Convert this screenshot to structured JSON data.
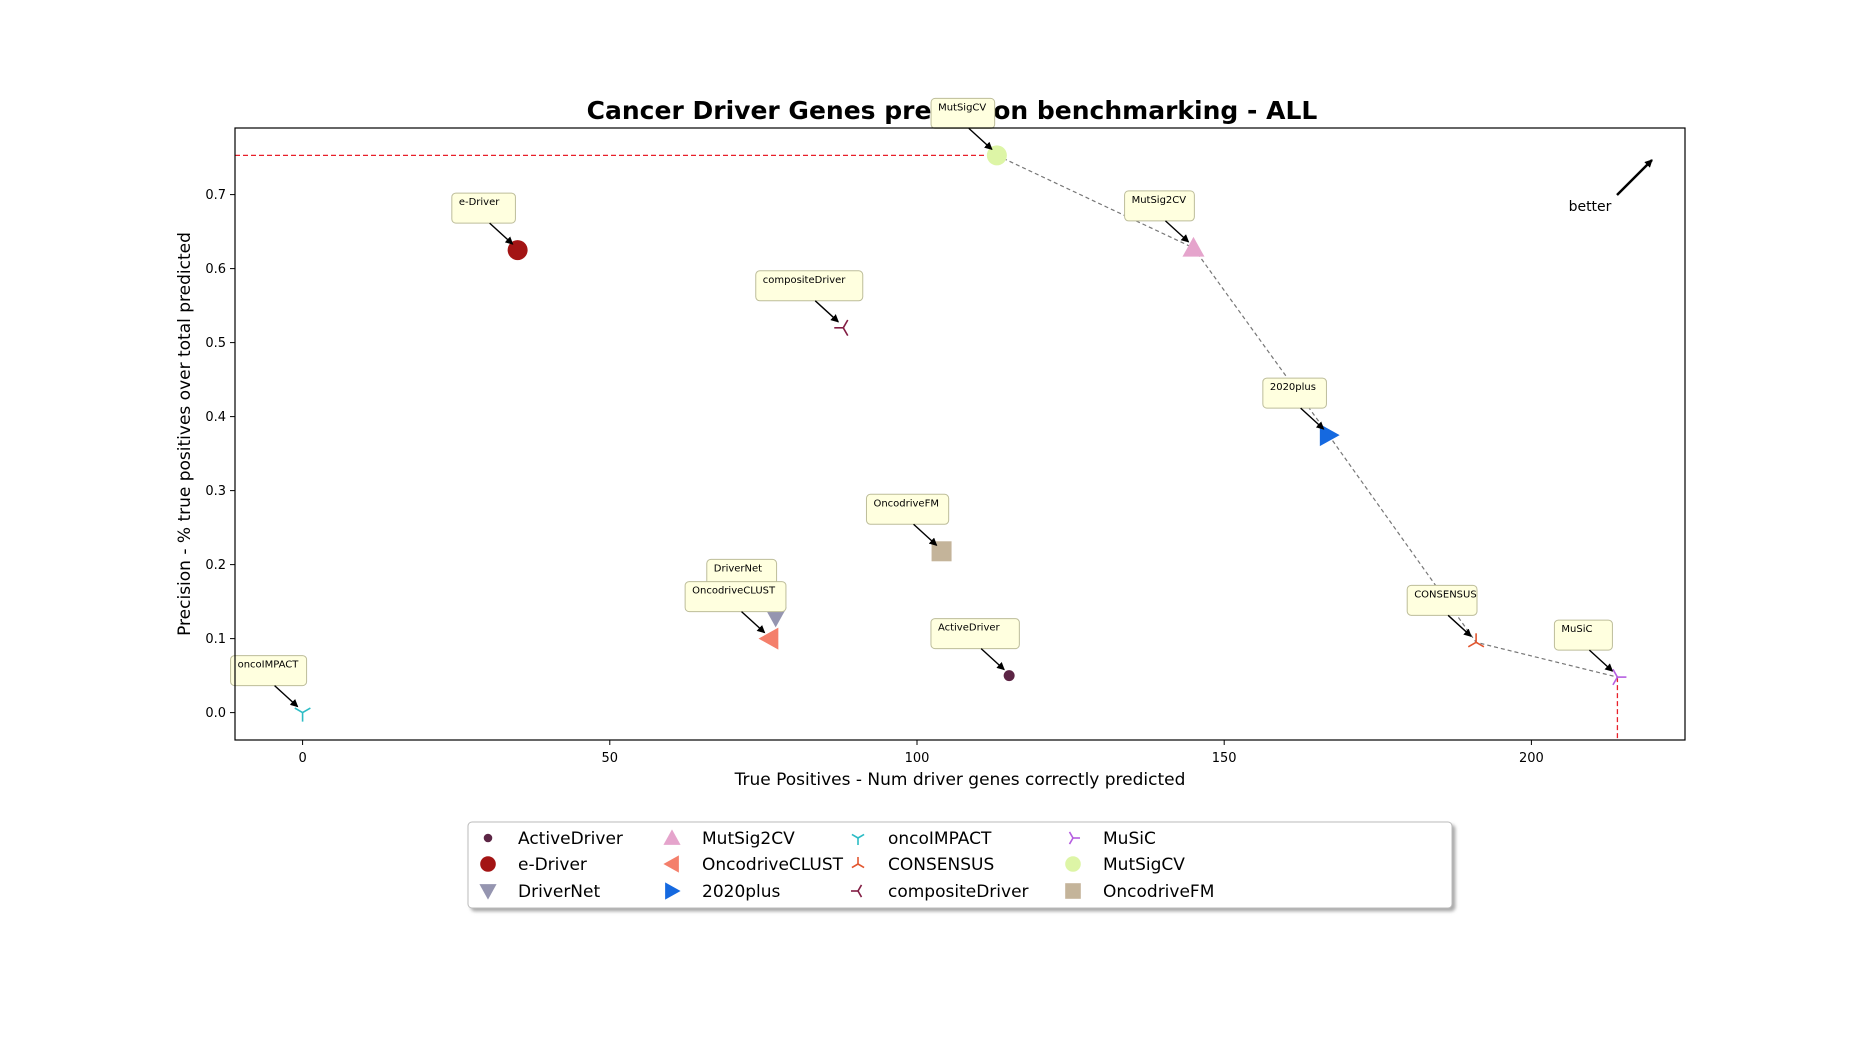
{
  "chart_data": {
    "type": "scatter",
    "title": "Cancer Driver Genes prediction benchmarking - ALL",
    "xlabel": "True Positives - Num driver genes correctly predicted",
    "ylabel": "Precision - % true positives over total predicted",
    "xlim": [
      -11,
      225
    ],
    "ylim": [
      -0.037,
      0.79
    ],
    "xticks": [
      0,
      50,
      100,
      150,
      200
    ],
    "yticks": [
      0.0,
      0.1,
      0.2,
      0.3,
      0.4,
      0.5,
      0.6,
      0.7
    ],
    "grid": false,
    "legend_position": "bottom-center",
    "better_label": "better",
    "reference_lines": {
      "max_precision": 0.753,
      "max_true_positives": 214
    },
    "pareto_front": [
      "MutSigCV",
      "MutSig2CV",
      "2020plus",
      "CONSENSUS",
      "MuSiC"
    ],
    "points": [
      {
        "name": "ActiveDriver",
        "x": 115,
        "y": 0.05,
        "marker": "circle-small",
        "color": "#5c2545"
      },
      {
        "name": "e-Driver",
        "x": 35,
        "y": 0.625,
        "marker": "circle",
        "color": "#a31414"
      },
      {
        "name": "DriverNet",
        "x": 77,
        "y": 0.13,
        "marker": "triangle-down",
        "color": "#9595b0"
      },
      {
        "name": "MutSig2CV",
        "x": 145,
        "y": 0.628,
        "marker": "triangle-up",
        "color": "#e5a4cc"
      },
      {
        "name": "OncodriveCLUST",
        "x": 76,
        "y": 0.1,
        "marker": "triangle-left",
        "color": "#f47f6b"
      },
      {
        "name": "2020plus",
        "x": 167,
        "y": 0.375,
        "marker": "triangle-right",
        "color": "#1569e0"
      },
      {
        "name": "oncoIMPACT",
        "x": 0,
        "y": 0.0,
        "marker": "tri-down",
        "color": "#2cbcc5"
      },
      {
        "name": "CONSENSUS",
        "x": 191,
        "y": 0.095,
        "marker": "tri-up",
        "color": "#e2562f"
      },
      {
        "name": "compositeDriver",
        "x": 88,
        "y": 0.52,
        "marker": "tri-left",
        "color": "#821d43"
      },
      {
        "name": "MuSiC",
        "x": 214,
        "y": 0.048,
        "marker": "tri-right",
        "color": "#b55ee0"
      },
      {
        "name": "MutSigCV",
        "x": 113,
        "y": 0.753,
        "marker": "circle",
        "color": "#ddf5a6"
      },
      {
        "name": "OncodriveFM",
        "x": 104,
        "y": 0.218,
        "marker": "square",
        "color": "#c4b49a"
      }
    ]
  }
}
